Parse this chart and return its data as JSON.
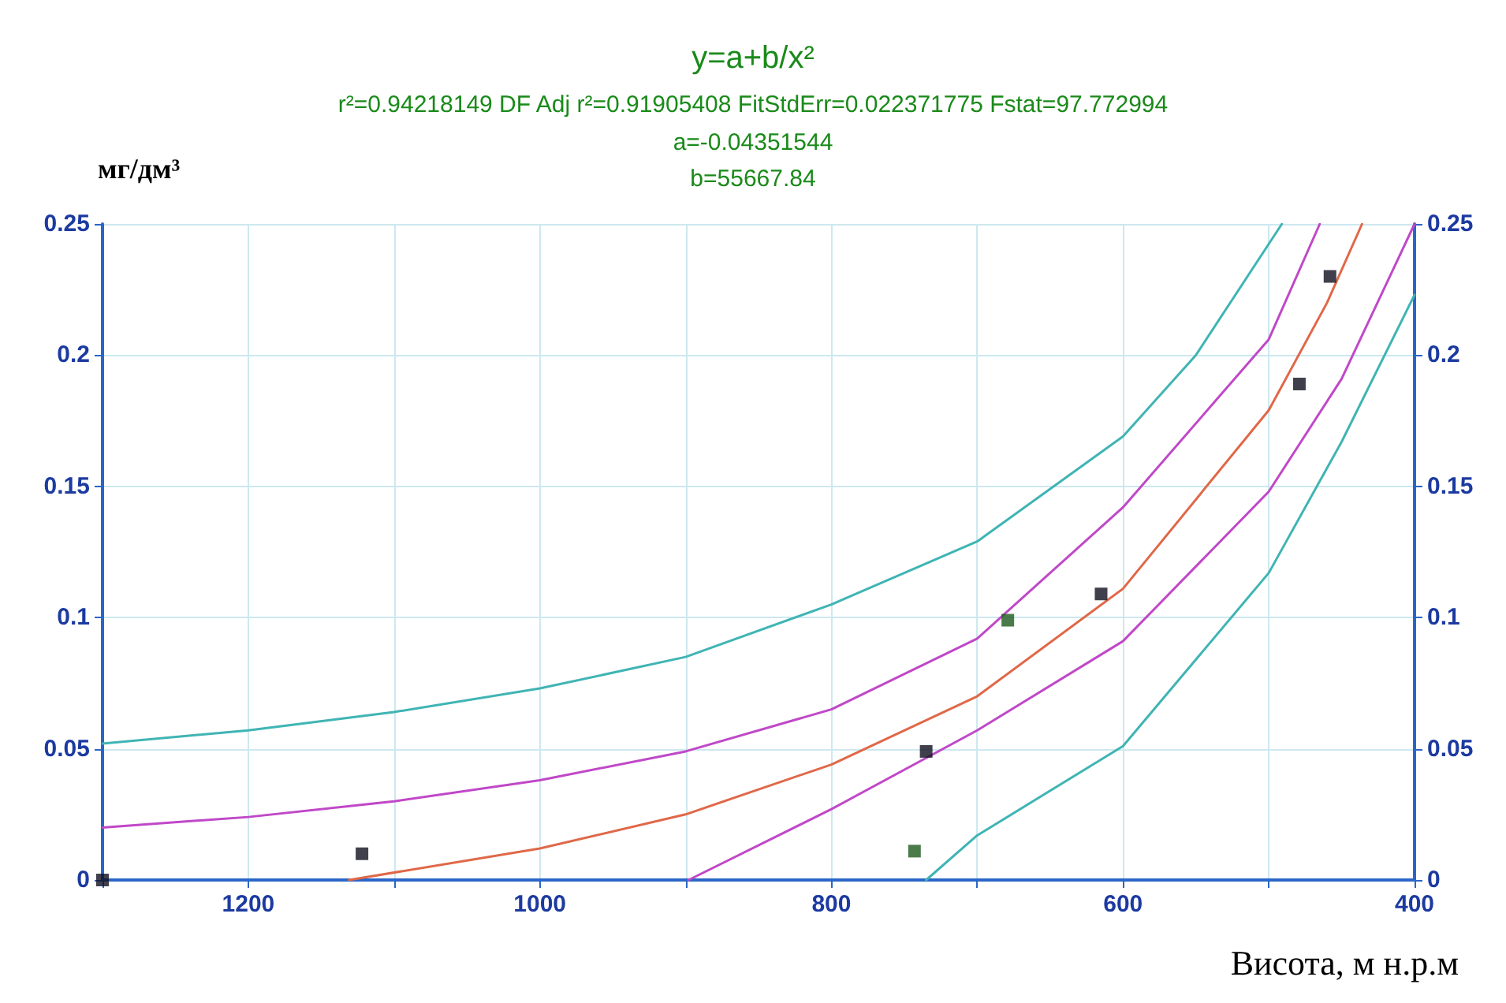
{
  "chart_data": {
    "type": "scatter",
    "title": "y=a+b/x²",
    "subtitle": "r²=0.94218149  DF Adj r²=0.91905408  FitStdErr=0.022371775  Fstat=97.772994",
    "annotations": [
      "a=-0.04351544",
      "b=55667.84"
    ],
    "ylabel": "мг/дм³",
    "xlabel": "Висота, м н.р.м",
    "xlim": [
      1300,
      400
    ],
    "xticks": [
      {
        "value": 1300,
        "label": null
      },
      1200,
      {
        "value": 1100,
        "label": null
      },
      1000,
      {
        "value": 900,
        "label": null
      },
      800,
      {
        "value": 700,
        "label": null
      },
      600,
      {
        "value": 500,
        "label": null
      },
      400
    ],
    "ylim": [
      0,
      0.25
    ],
    "yticks": [
      0,
      0.05,
      0.1,
      0.15,
      0.2,
      0.25
    ],
    "y2lim": [
      0,
      0.25
    ],
    "y2ticks": [
      0,
      0.05,
      0.1,
      0.15,
      0.2,
      0.25
    ],
    "grid": true,
    "marker": "square",
    "series": [
      {
        "type": "line",
        "color": "#40b4b4",
        "marker": "none",
        "x": [
          1300,
          1200,
          1100,
          1000,
          900,
          800,
          700,
          600,
          550,
          491
        ],
        "values": [
          0.052,
          0.057,
          0.064,
          0.073,
          0.085,
          0.105,
          0.129,
          0.169,
          0.2,
          0.25
        ]
      },
      {
        "type": "line",
        "color": "#c048c8",
        "marker": "none",
        "x": [
          1300,
          1200,
          1100,
          1000,
          900,
          800,
          700,
          600,
          500,
          465
        ],
        "values": [
          0.02,
          0.024,
          0.03,
          0.038,
          0.049,
          0.065,
          0.092,
          0.142,
          0.206,
          0.25
        ]
      },
      {
        "type": "line",
        "color": "#e06848",
        "marker": "none",
        "x": [
          1131,
          1000,
          900,
          800,
          700,
          600,
          500,
          460,
          436
        ],
        "values": [
          0,
          0.012,
          0.025,
          0.044,
          0.07,
          0.111,
          0.179,
          0.22,
          0.25
        ]
      },
      {
        "type": "line",
        "color": "#c048c8",
        "marker": "none",
        "x": [
          898,
          800,
          700,
          600,
          500,
          450,
          400
        ],
        "values": [
          0,
          0.027,
          0.057,
          0.091,
          0.148,
          0.191,
          0.25
        ]
      },
      {
        "type": "line",
        "color": "#40b4b4",
        "marker": "none",
        "x": [
          735,
          700,
          600,
          500,
          450,
          400
        ],
        "values": [
          0,
          0.017,
          0.051,
          0.117,
          0.167,
          0.223
        ]
      },
      {
        "color": "#101020",
        "x": [
          1300,
          1122,
          735,
          615,
          479,
          458
        ],
        "values": [
          0,
          0.01,
          0.049,
          0.109,
          0.189,
          0.23
        ]
      },
      {
        "color": "#1e5a1e",
        "x": [
          743,
          679
        ],
        "values": [
          0.011,
          0.099
        ]
      }
    ]
  }
}
